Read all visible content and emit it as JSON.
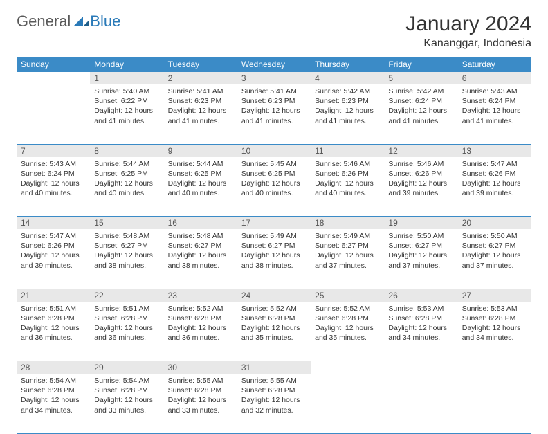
{
  "logo": {
    "general": "General",
    "blue": "Blue"
  },
  "title": "January 2024",
  "location": "Kananggar, Indonesia",
  "colors": {
    "header_bg": "#3b8bc7",
    "daynum_bg": "#e8e8e8",
    "rule": "#3b8bc7"
  },
  "weekdays": [
    "Sunday",
    "Monday",
    "Tuesday",
    "Wednesday",
    "Thursday",
    "Friday",
    "Saturday"
  ],
  "start_offset": 1,
  "days": [
    {
      "n": 1,
      "sr": "5:40 AM",
      "ss": "6:22 PM",
      "dl": "12 hours and 41 minutes."
    },
    {
      "n": 2,
      "sr": "5:41 AM",
      "ss": "6:23 PM",
      "dl": "12 hours and 41 minutes."
    },
    {
      "n": 3,
      "sr": "5:41 AM",
      "ss": "6:23 PM",
      "dl": "12 hours and 41 minutes."
    },
    {
      "n": 4,
      "sr": "5:42 AM",
      "ss": "6:23 PM",
      "dl": "12 hours and 41 minutes."
    },
    {
      "n": 5,
      "sr": "5:42 AM",
      "ss": "6:24 PM",
      "dl": "12 hours and 41 minutes."
    },
    {
      "n": 6,
      "sr": "5:43 AM",
      "ss": "6:24 PM",
      "dl": "12 hours and 41 minutes."
    },
    {
      "n": 7,
      "sr": "5:43 AM",
      "ss": "6:24 PM",
      "dl": "12 hours and 40 minutes."
    },
    {
      "n": 8,
      "sr": "5:44 AM",
      "ss": "6:25 PM",
      "dl": "12 hours and 40 minutes."
    },
    {
      "n": 9,
      "sr": "5:44 AM",
      "ss": "6:25 PM",
      "dl": "12 hours and 40 minutes."
    },
    {
      "n": 10,
      "sr": "5:45 AM",
      "ss": "6:25 PM",
      "dl": "12 hours and 40 minutes."
    },
    {
      "n": 11,
      "sr": "5:46 AM",
      "ss": "6:26 PM",
      "dl": "12 hours and 40 minutes."
    },
    {
      "n": 12,
      "sr": "5:46 AM",
      "ss": "6:26 PM",
      "dl": "12 hours and 39 minutes."
    },
    {
      "n": 13,
      "sr": "5:47 AM",
      "ss": "6:26 PM",
      "dl": "12 hours and 39 minutes."
    },
    {
      "n": 14,
      "sr": "5:47 AM",
      "ss": "6:26 PM",
      "dl": "12 hours and 39 minutes."
    },
    {
      "n": 15,
      "sr": "5:48 AM",
      "ss": "6:27 PM",
      "dl": "12 hours and 38 minutes."
    },
    {
      "n": 16,
      "sr": "5:48 AM",
      "ss": "6:27 PM",
      "dl": "12 hours and 38 minutes."
    },
    {
      "n": 17,
      "sr": "5:49 AM",
      "ss": "6:27 PM",
      "dl": "12 hours and 38 minutes."
    },
    {
      "n": 18,
      "sr": "5:49 AM",
      "ss": "6:27 PM",
      "dl": "12 hours and 37 minutes."
    },
    {
      "n": 19,
      "sr": "5:50 AM",
      "ss": "6:27 PM",
      "dl": "12 hours and 37 minutes."
    },
    {
      "n": 20,
      "sr": "5:50 AM",
      "ss": "6:27 PM",
      "dl": "12 hours and 37 minutes."
    },
    {
      "n": 21,
      "sr": "5:51 AM",
      "ss": "6:28 PM",
      "dl": "12 hours and 36 minutes."
    },
    {
      "n": 22,
      "sr": "5:51 AM",
      "ss": "6:28 PM",
      "dl": "12 hours and 36 minutes."
    },
    {
      "n": 23,
      "sr": "5:52 AM",
      "ss": "6:28 PM",
      "dl": "12 hours and 36 minutes."
    },
    {
      "n": 24,
      "sr": "5:52 AM",
      "ss": "6:28 PM",
      "dl": "12 hours and 35 minutes."
    },
    {
      "n": 25,
      "sr": "5:52 AM",
      "ss": "6:28 PM",
      "dl": "12 hours and 35 minutes."
    },
    {
      "n": 26,
      "sr": "5:53 AM",
      "ss": "6:28 PM",
      "dl": "12 hours and 34 minutes."
    },
    {
      "n": 27,
      "sr": "5:53 AM",
      "ss": "6:28 PM",
      "dl": "12 hours and 34 minutes."
    },
    {
      "n": 28,
      "sr": "5:54 AM",
      "ss": "6:28 PM",
      "dl": "12 hours and 34 minutes."
    },
    {
      "n": 29,
      "sr": "5:54 AM",
      "ss": "6:28 PM",
      "dl": "12 hours and 33 minutes."
    },
    {
      "n": 30,
      "sr": "5:55 AM",
      "ss": "6:28 PM",
      "dl": "12 hours and 33 minutes."
    },
    {
      "n": 31,
      "sr": "5:55 AM",
      "ss": "6:28 PM",
      "dl": "12 hours and 32 minutes."
    }
  ],
  "labels": {
    "sunrise": "Sunrise:",
    "sunset": "Sunset:",
    "daylight": "Daylight:"
  }
}
